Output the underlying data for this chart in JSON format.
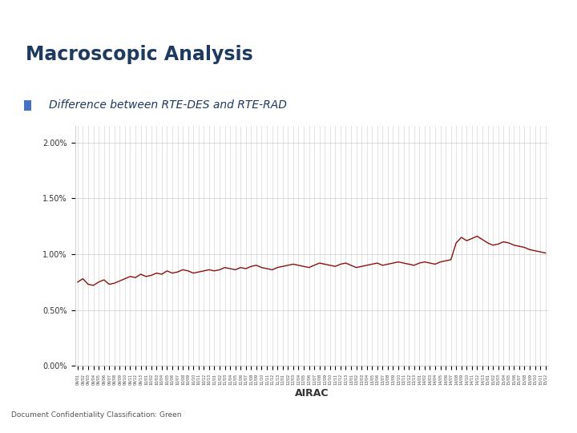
{
  "title": "Macroscopic Analysis",
  "subtitle": "Difference between RTE-DES and RTE-RAD",
  "xlabel": "AIRAC",
  "background_color": "#ffffff",
  "header_color": "#1e3a5f",
  "footer_bg": "#e8e8e8",
  "line_color": "#8B1010",
  "line_width": 1.0,
  "yticks": [
    0.0,
    0.005,
    0.01,
    0.015,
    0.02
  ],
  "ytick_labels": [
    "0.00%",
    "0.50%",
    "1.00%",
    "1.50%",
    "2.00%"
  ],
  "ylim": [
    0.0,
    0.0215
  ],
  "footer_text": "Document Confidentiality Classification: Green",
  "y_values": [
    0.0075,
    0.0078,
    0.0073,
    0.0072,
    0.0075,
    0.0077,
    0.0073,
    0.0074,
    0.0076,
    0.0078,
    0.008,
    0.0079,
    0.0082,
    0.008,
    0.0081,
    0.0083,
    0.0082,
    0.0085,
    0.0083,
    0.0084,
    0.0086,
    0.0085,
    0.0083,
    0.0084,
    0.0085,
    0.0086,
    0.0085,
    0.0086,
    0.0088,
    0.0087,
    0.0086,
    0.0088,
    0.0087,
    0.0089,
    0.009,
    0.0088,
    0.0087,
    0.0086,
    0.0088,
    0.0089,
    0.009,
    0.0091,
    0.009,
    0.0089,
    0.0088,
    0.009,
    0.0092,
    0.0091,
    0.009,
    0.0089,
    0.0091,
    0.0092,
    0.009,
    0.0088,
    0.0089,
    0.009,
    0.0091,
    0.0092,
    0.009,
    0.0091,
    0.0092,
    0.0093,
    0.0092,
    0.0091,
    0.009,
    0.0092,
    0.0093,
    0.0092,
    0.0091,
    0.0093,
    0.0094,
    0.0095,
    0.011,
    0.0115,
    0.0112,
    0.0114,
    0.0116,
    0.0113,
    0.011,
    0.0108,
    0.0109,
    0.0111,
    0.011,
    0.0108,
    0.0107,
    0.0106,
    0.0104,
    0.0103,
    0.0102,
    0.0101
  ]
}
